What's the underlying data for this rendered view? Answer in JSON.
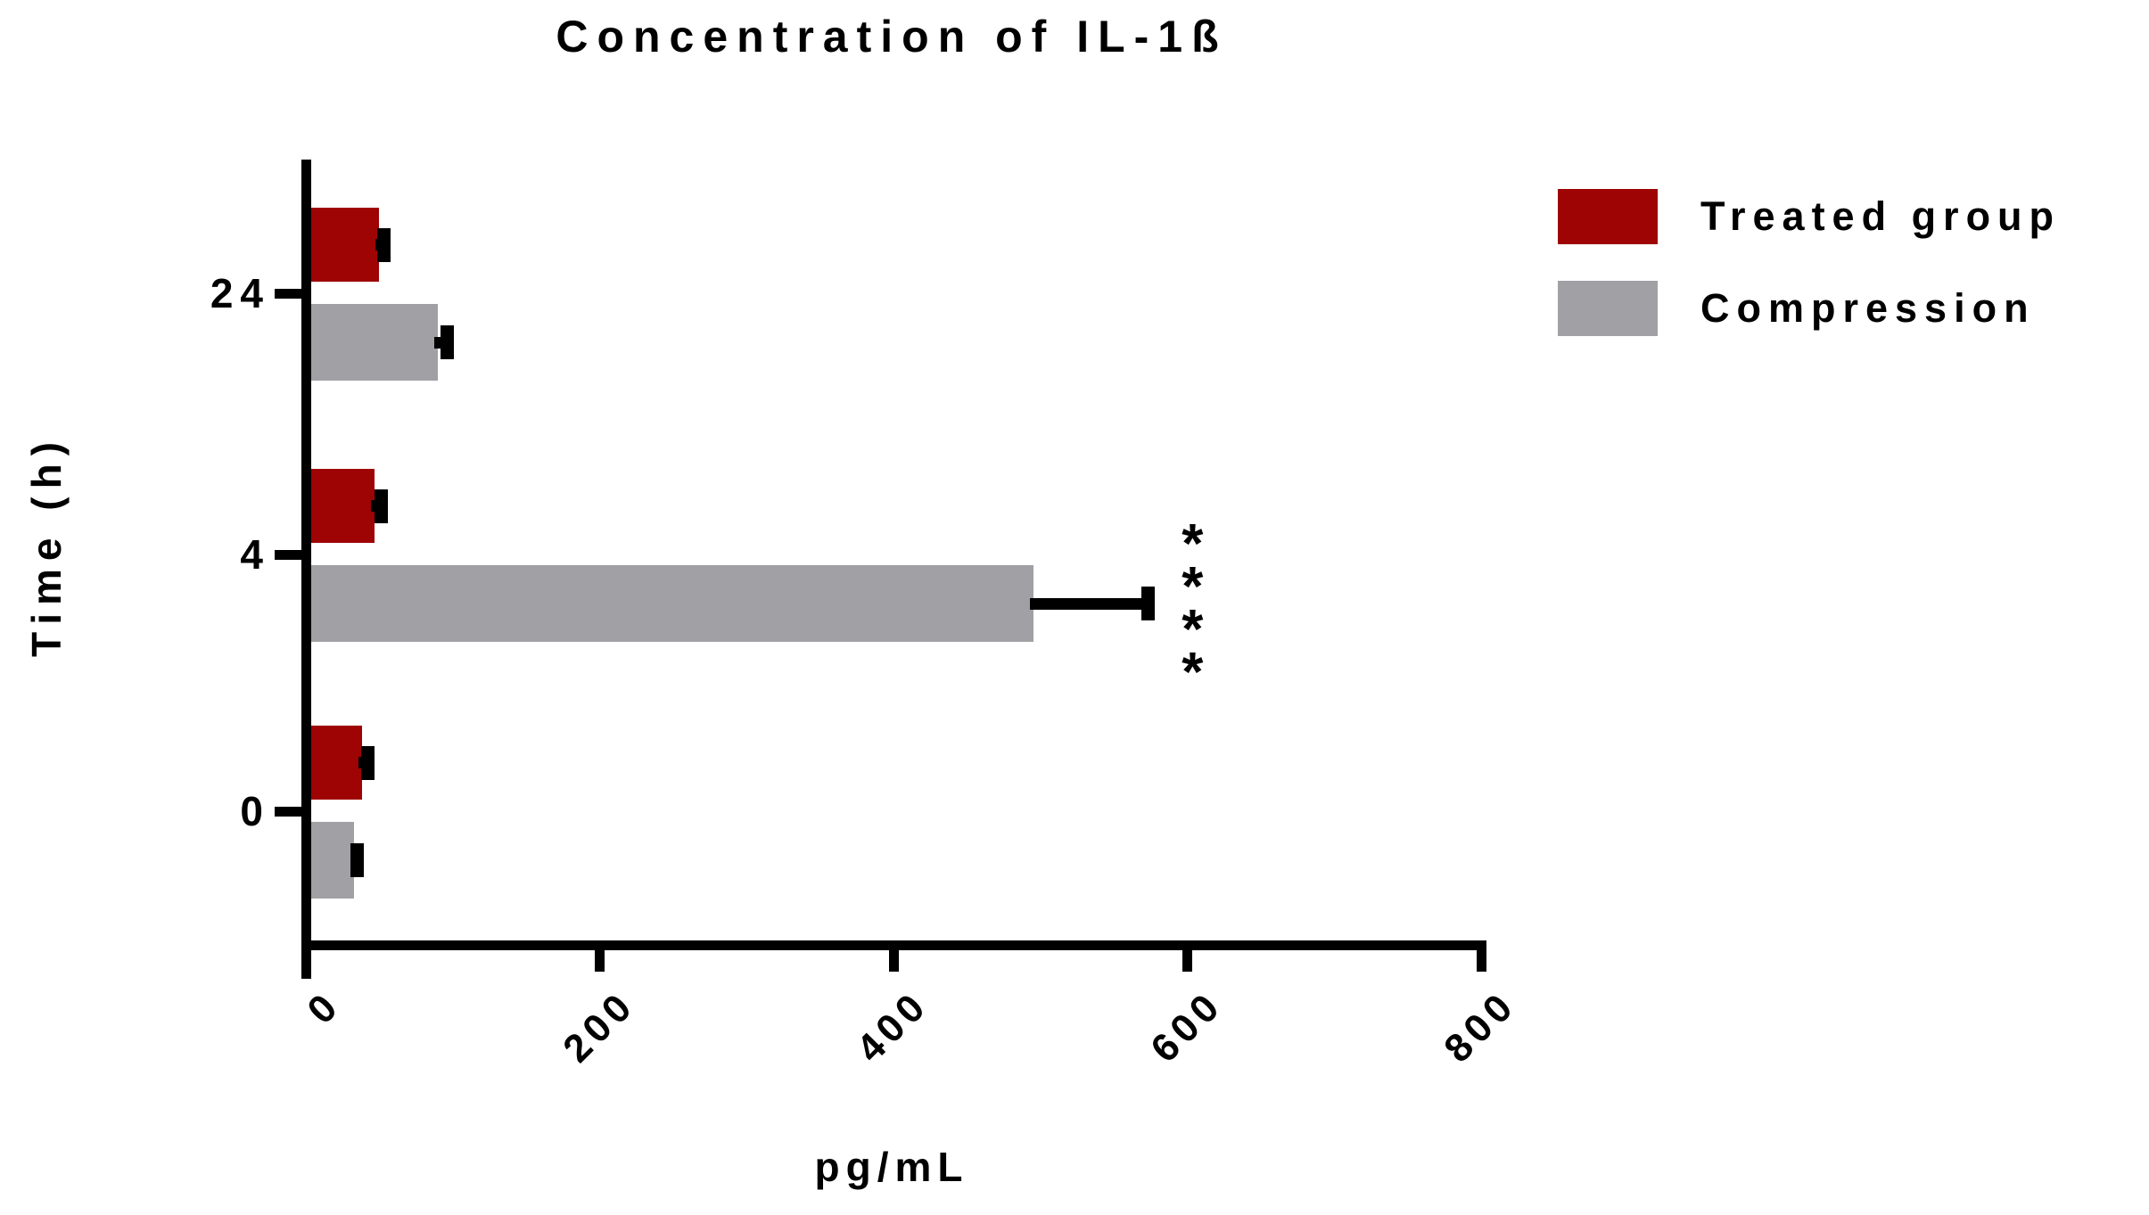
{
  "title": "Concentration of IL-1ß",
  "chart_data": {
    "type": "bar",
    "orientation": "horizontal",
    "title": "Concentration of IL-1ß",
    "xlabel": "pg/mL",
    "ylabel": "Time (h)",
    "xlim": [
      0,
      800
    ],
    "xticks": [
      0,
      200,
      400,
      600,
      800
    ],
    "categories": [
      "24",
      "4",
      "0"
    ],
    "category_unit": "h",
    "grid": false,
    "legend_position": "upper right",
    "series": [
      {
        "name": "Treated group",
        "color": "#9E0404",
        "values": [
          50,
          47,
          38
        ],
        "errors": [
          3,
          4,
          4
        ]
      },
      {
        "name": "Compression",
        "color": "#A1A0A4",
        "values": [
          90,
          495,
          33
        ],
        "errors": [
          6,
          78,
          2
        ]
      }
    ],
    "annotations": [
      {
        "text": "****",
        "series": "Compression",
        "category": "4",
        "meaning": "statistical-significance"
      }
    ]
  }
}
